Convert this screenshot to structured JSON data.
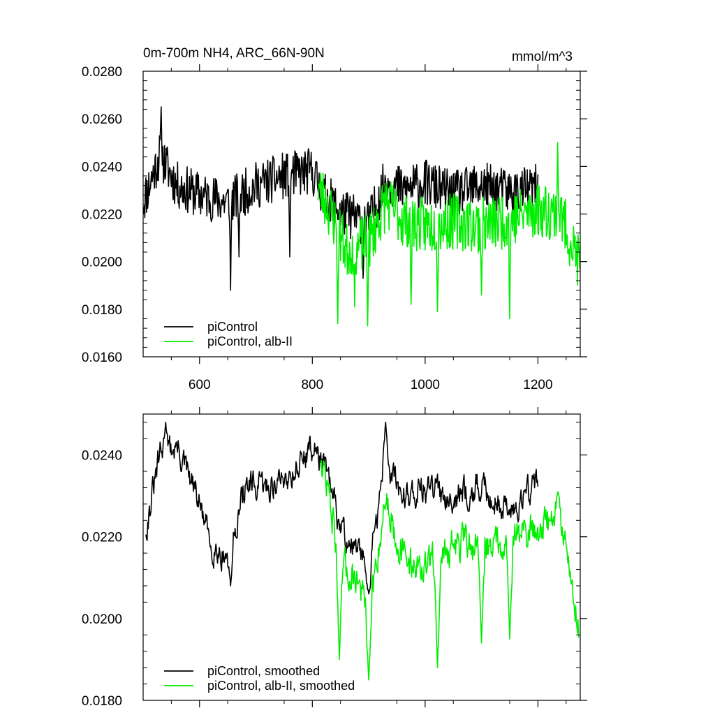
{
  "header": {
    "title": "0m-700m NH4, ARC_66N-90N",
    "units": "mmol/m^3"
  },
  "colors": {
    "control": "#000000",
    "albII": "#00ee00"
  },
  "chart_data": [
    {
      "type": "line",
      "xlim": [
        500,
        1275
      ],
      "ylim": [
        0.016,
        0.028
      ],
      "x_ticks": [
        600,
        800,
        1000,
        1200
      ],
      "x_tick_labels": [
        "600",
        "800",
        "1000",
        "1200"
      ],
      "y_ticks": [
        0.016,
        0.018,
        0.02,
        0.022,
        0.024,
        0.026,
        0.028
      ],
      "y_tick_labels": [
        "0.0160",
        "0.0180",
        "0.0200",
        "0.0220",
        "0.0240",
        "0.0260",
        "0.0280"
      ],
      "legend": "bottom-left",
      "grid": false,
      "series": [
        {
          "name": "piControl",
          "color": "#000000",
          "x_range": [
            500,
            1200
          ],
          "mean": 0.0229,
          "noise": 0.001,
          "seed": 11,
          "keyframes": [
            [
              500,
              0.0225
            ],
            [
              530,
              0.0245
            ],
            [
              560,
              0.0232
            ],
            [
              600,
              0.0228
            ],
            [
              650,
              0.0225
            ],
            [
              700,
              0.0232
            ],
            [
              750,
              0.0236
            ],
            [
              800,
              0.0238
            ],
            [
              820,
              0.0228
            ],
            [
              850,
              0.0221
            ],
            [
              900,
              0.0216
            ],
            [
              930,
              0.0234
            ],
            [
              960,
              0.023
            ],
            [
              1000,
              0.0233
            ],
            [
              1050,
              0.0228
            ],
            [
              1100,
              0.0232
            ],
            [
              1150,
              0.0229
            ],
            [
              1200,
              0.0231
            ]
          ],
          "dips": [
            [
              532,
              0.0265
            ],
            [
              655,
              0.0188
            ],
            [
              670,
              0.0202
            ],
            [
              760,
              0.0202
            ],
            [
              890,
              0.0193
            ]
          ]
        },
        {
          "name": "piControl, alb-II",
          "color": "#00ee00",
          "x_range": [
            810,
            1275
          ],
          "mean": 0.0215,
          "noise": 0.0012,
          "seed": 23,
          "keyframes": [
            [
              810,
              0.0232
            ],
            [
              830,
              0.0222
            ],
            [
              860,
              0.0205
            ],
            [
              900,
              0.0208
            ],
            [
              930,
              0.0225
            ],
            [
              960,
              0.0218
            ],
            [
              1000,
              0.0215
            ],
            [
              1050,
              0.0217
            ],
            [
              1100,
              0.0215
            ],
            [
              1150,
              0.0218
            ],
            [
              1200,
              0.0222
            ],
            [
              1240,
              0.022
            ],
            [
              1275,
              0.0198
            ]
          ],
          "dips": [
            [
              845,
              0.0174
            ],
            [
              875,
              0.0181
            ],
            [
              898,
              0.0173
            ],
            [
              975,
              0.0182
            ],
            [
              1022,
              0.0179
            ],
            [
              1100,
              0.0186
            ],
            [
              1150,
              0.0176
            ],
            [
              1235,
              0.025
            ]
          ]
        }
      ]
    },
    {
      "type": "line",
      "xlim": [
        500,
        1275
      ],
      "ylim": [
        0.018,
        0.025
      ],
      "x_ticks": [
        600,
        800,
        1000,
        1200
      ],
      "x_tick_labels": [],
      "y_ticks": [
        0.018,
        0.02,
        0.022,
        0.024
      ],
      "y_tick_labels": [
        "0.0180",
        "0.0200",
        "0.0220",
        "0.0240"
      ],
      "legend": "bottom-left",
      "grid": false,
      "series": [
        {
          "name": "piControl, smoothed",
          "color": "#000000",
          "x_range": [
            505,
            1200
          ],
          "mean": 0.023,
          "noise": 0.0004,
          "seed": 31,
          "keyframes": [
            [
              505,
              0.0222
            ],
            [
              530,
              0.024
            ],
            [
              560,
              0.0242
            ],
            [
              600,
              0.0228
            ],
            [
              620,
              0.0218
            ],
            [
              650,
              0.0215
            ],
            [
              680,
              0.0232
            ],
            [
              720,
              0.0232
            ],
            [
              760,
              0.0235
            ],
            [
              800,
              0.0242
            ],
            [
              820,
              0.0238
            ],
            [
              850,
              0.0222
            ],
            [
              880,
              0.0216
            ],
            [
              900,
              0.0212
            ],
            [
              930,
              0.0238
            ],
            [
              960,
              0.023
            ],
            [
              1000,
              0.0232
            ],
            [
              1050,
              0.023
            ],
            [
              1100,
              0.0232
            ],
            [
              1150,
              0.0226
            ],
            [
              1200,
              0.0234
            ]
          ],
          "dips": [
            [
              540,
              0.0248
            ],
            [
              655,
              0.0208
            ],
            [
              930,
              0.0248
            ],
            [
              900,
              0.0206
            ]
          ]
        },
        {
          "name": "piControl, alb-II, smoothed",
          "color": "#00ee00",
          "x_range": [
            815,
            1272
          ],
          "mean": 0.0216,
          "noise": 0.0005,
          "seed": 47,
          "keyframes": [
            [
              815,
              0.024
            ],
            [
              830,
              0.023
            ],
            [
              850,
              0.0212
            ],
            [
              880,
              0.021
            ],
            [
              900,
              0.02
            ],
            [
              930,
              0.023
            ],
            [
              960,
              0.0215
            ],
            [
              1000,
              0.0212
            ],
            [
              1050,
              0.0218
            ],
            [
              1100,
              0.0218
            ],
            [
              1150,
              0.022
            ],
            [
              1200,
              0.0222
            ],
            [
              1240,
              0.0226
            ],
            [
              1272,
              0.0198
            ]
          ],
          "dips": [
            [
              848,
              0.019
            ],
            [
              900,
              0.0185
            ],
            [
              1022,
              0.0188
            ],
            [
              1100,
              0.0194
            ],
            [
              1150,
              0.0195
            ],
            [
              1235,
              0.0231
            ]
          ]
        }
      ]
    }
  ]
}
